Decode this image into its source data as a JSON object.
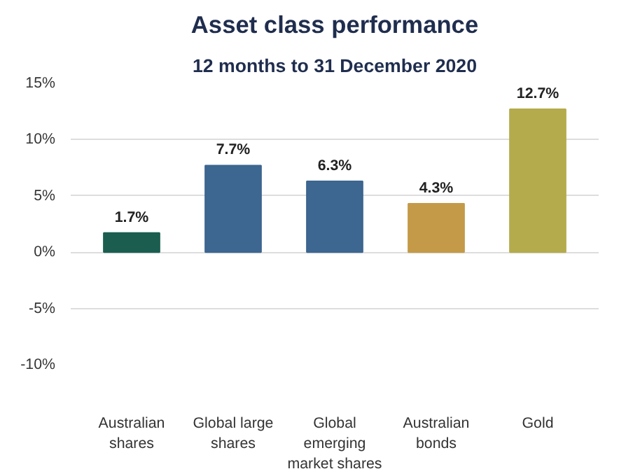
{
  "chart_data": {
    "type": "bar",
    "title": "Asset class performance",
    "subtitle": "12 months to 31 December 2020",
    "categories": [
      "Australian shares",
      "Global large shares",
      "Global emerging market shares",
      "Australian bonds",
      "Gold"
    ],
    "values": [
      1.7,
      7.7,
      6.3,
      4.3,
      12.7
    ],
    "colors": [
      "#1b5e50",
      "#3d6690",
      "#3d6690",
      "#c49a48",
      "#b4ab4c"
    ],
    "value_labels": [
      "1.7%",
      "7.7%",
      "6.3%",
      "4.3%",
      "12.7%"
    ],
    "ylim": [
      -10,
      15
    ],
    "yticks": [
      {
        "value": -10,
        "label": "-10%"
      },
      {
        "value": -5,
        "label": "-5%"
      },
      {
        "value": 0,
        "label": "0%"
      },
      {
        "value": 5,
        "label": "5%"
      },
      {
        "value": 10,
        "label": "10%"
      },
      {
        "value": 15,
        "label": "15%"
      }
    ],
    "grid": "y"
  }
}
